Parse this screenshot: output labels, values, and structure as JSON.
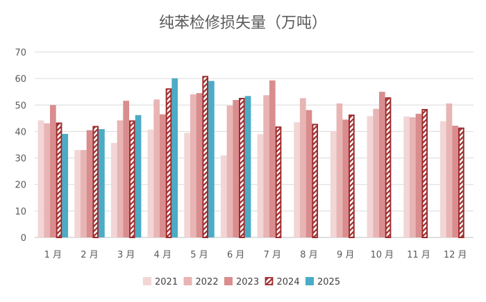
{
  "chart_data": {
    "type": "bar",
    "title": "纯苯检修损失量（万吨）",
    "categories": [
      "1 月",
      "2 月",
      "3 月",
      "4 月",
      "5 月",
      "6 月",
      "7 月",
      "8 月",
      "9 月",
      "10 月",
      "11 月",
      "12 月"
    ],
    "ylim": [
      0,
      70
    ],
    "yticks": [
      0,
      10,
      20,
      30,
      40,
      50,
      60,
      70
    ],
    "grid": true,
    "legend_position": "bottom",
    "series": [
      {
        "name": "2021",
        "color": "#f2d5d5",
        "hatched": false,
        "values": [
          44.2,
          33,
          35.7,
          40.7,
          39.5,
          31,
          39,
          43.5,
          40.2,
          45.8,
          45.7,
          43.9
        ]
      },
      {
        "name": "2022",
        "color": "#e9b4b4",
        "hatched": false,
        "values": [
          43.1,
          33,
          44.2,
          52.1,
          54,
          49.8,
          53.7,
          52.6,
          50.6,
          48.6,
          45.4,
          50.6
        ]
      },
      {
        "name": "2023",
        "color": "#d98d8e",
        "hatched": false,
        "values": [
          50,
          40.5,
          51.6,
          46.5,
          54.5,
          51.9,
          59.3,
          48.1,
          44.5,
          55,
          46.7,
          42.2
        ]
      },
      {
        "name": "2024",
        "color": "#9e2a2b",
        "hatched": true,
        "values": [
          43.4,
          42.1,
          44.2,
          56.3,
          61,
          52.7,
          41.9,
          42.9,
          46.4,
          52.9,
          48.5,
          41.5
        ]
      },
      {
        "name": "2025",
        "color": "#4bacc6",
        "hatched": false,
        "values": [
          39.1,
          40.9,
          46.2,
          60.1,
          59.1,
          53.4,
          null,
          null,
          null,
          null,
          null,
          null
        ]
      }
    ]
  }
}
